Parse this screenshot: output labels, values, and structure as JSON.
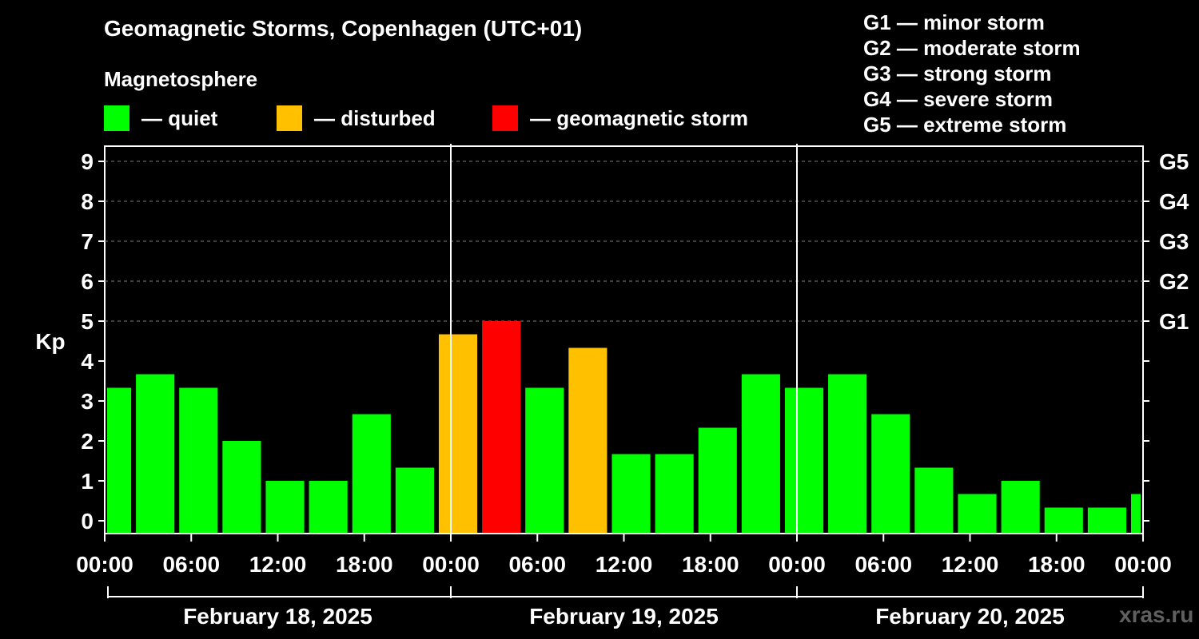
{
  "header": {
    "title": "Geomagnetic Storms, Copenhagen (UTC+01)",
    "subtitle": "Magnetosphere"
  },
  "legend": [
    {
      "label": "— quiet",
      "color": "#00ff00"
    },
    {
      "label": "— disturbed",
      "color": "#ffc000"
    },
    {
      "label": "— geomagnetic storm",
      "color": "#ff0000"
    }
  ],
  "storm_levels": [
    "G1 — minor storm",
    "G2 — moderate storm",
    "G3 — strong storm",
    "G4 — severe storm",
    "G5 — extreme storm"
  ],
  "watermark": "xras.ru",
  "chart_data": {
    "type": "bar",
    "ylabel": "Kp",
    "ylim": [
      0,
      9
    ],
    "yticks": [
      0,
      1,
      2,
      3,
      4,
      5,
      6,
      7,
      8,
      9
    ],
    "right_axis_labels": [
      {
        "y": 5,
        "label": "G1"
      },
      {
        "y": 6,
        "label": "G2"
      },
      {
        "y": 7,
        "label": "G3"
      },
      {
        "y": 8,
        "label": "G4"
      },
      {
        "y": 9,
        "label": "G5"
      }
    ],
    "x_tick_labels": [
      "00:00",
      "06:00",
      "12:00",
      "18:00",
      "00:00",
      "06:00",
      "12:00",
      "18:00",
      "00:00",
      "06:00",
      "12:00",
      "18:00",
      "00:00"
    ],
    "dates": [
      "February 18, 2025",
      "February 19, 2025",
      "February 20, 2025"
    ],
    "grid": "dashed horizontal at Kp 5-9",
    "colors": {
      "quiet": "#00ff00",
      "disturbed": "#ffc000",
      "storm": "#ff0000"
    },
    "bars": [
      {
        "time": "2025-02-17 23:00",
        "value": 3.33,
        "status": "quiet"
      },
      {
        "time": "2025-02-18 02:00",
        "value": 3.67,
        "status": "quiet"
      },
      {
        "time": "2025-02-18 05:00",
        "value": 3.33,
        "status": "quiet"
      },
      {
        "time": "2025-02-18 08:00",
        "value": 2.0,
        "status": "quiet"
      },
      {
        "time": "2025-02-18 11:00",
        "value": 1.0,
        "status": "quiet"
      },
      {
        "time": "2025-02-18 14:00",
        "value": 1.0,
        "status": "quiet"
      },
      {
        "time": "2025-02-18 17:00",
        "value": 2.67,
        "status": "quiet"
      },
      {
        "time": "2025-02-18 20:00",
        "value": 1.33,
        "status": "quiet"
      },
      {
        "time": "2025-02-18 23:00",
        "value": 4.67,
        "status": "disturbed"
      },
      {
        "time": "2025-02-19 02:00",
        "value": 5.0,
        "status": "storm"
      },
      {
        "time": "2025-02-19 05:00",
        "value": 3.33,
        "status": "quiet"
      },
      {
        "time": "2025-02-19 08:00",
        "value": 4.33,
        "status": "disturbed"
      },
      {
        "time": "2025-02-19 11:00",
        "value": 1.67,
        "status": "quiet"
      },
      {
        "time": "2025-02-19 14:00",
        "value": 1.67,
        "status": "quiet"
      },
      {
        "time": "2025-02-19 17:00",
        "value": 2.33,
        "status": "quiet"
      },
      {
        "time": "2025-02-19 20:00",
        "value": 3.67,
        "status": "quiet"
      },
      {
        "time": "2025-02-19 23:00",
        "value": 3.33,
        "status": "quiet"
      },
      {
        "time": "2025-02-20 02:00",
        "value": 3.67,
        "status": "quiet"
      },
      {
        "time": "2025-02-20 05:00",
        "value": 2.67,
        "status": "quiet"
      },
      {
        "time": "2025-02-20 08:00",
        "value": 1.33,
        "status": "quiet"
      },
      {
        "time": "2025-02-20 11:00",
        "value": 0.67,
        "status": "quiet"
      },
      {
        "time": "2025-02-20 14:00",
        "value": 1.0,
        "status": "quiet"
      },
      {
        "time": "2025-02-20 17:00",
        "value": 0.33,
        "status": "quiet"
      },
      {
        "time": "2025-02-20 20:00",
        "value": 0.33,
        "status": "quiet"
      },
      {
        "time": "2025-02-20 23:00",
        "value": 0.67,
        "status": "quiet"
      }
    ]
  }
}
